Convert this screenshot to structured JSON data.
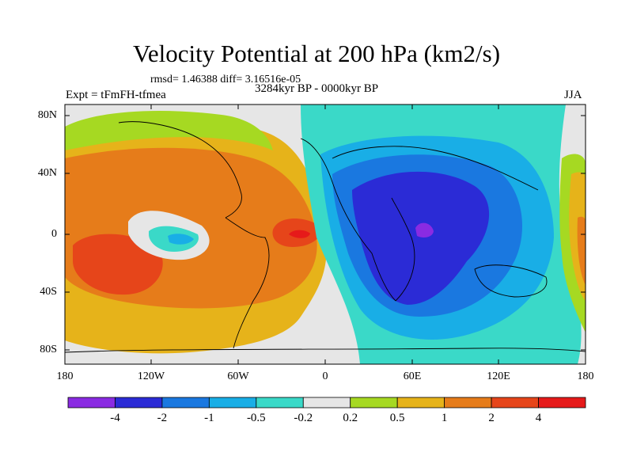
{
  "title": "Velocity Potential at 200 hPa (km2/s)",
  "stats": "rmsd= 1.46388  diff= 3.16516e-05",
  "experiment": "Expt = tFmFH-tfmea",
  "period": "3284kyr BP - 0000kyr BP",
  "season": "JJA",
  "lat_labels": [
    "80N",
    "40N",
    "0",
    "40S",
    "80S"
  ],
  "lon_labels": [
    "180",
    "120W",
    "60W",
    "0",
    "60E",
    "120E",
    "180"
  ],
  "colorbar": {
    "labels": [
      "-4",
      "-2",
      "-1",
      "-0.5",
      "-0.2",
      "0.2",
      "0.5",
      "1",
      "2",
      "4"
    ],
    "colors": [
      "#8a2be2",
      "#2b2bd6",
      "#1a78e0",
      "#19aee6",
      "#3ad9c8",
      "#e6e6e6",
      "#a6d922",
      "#e6b31a",
      "#e67c1a",
      "#e6451a",
      "#e61a1a"
    ]
  }
}
